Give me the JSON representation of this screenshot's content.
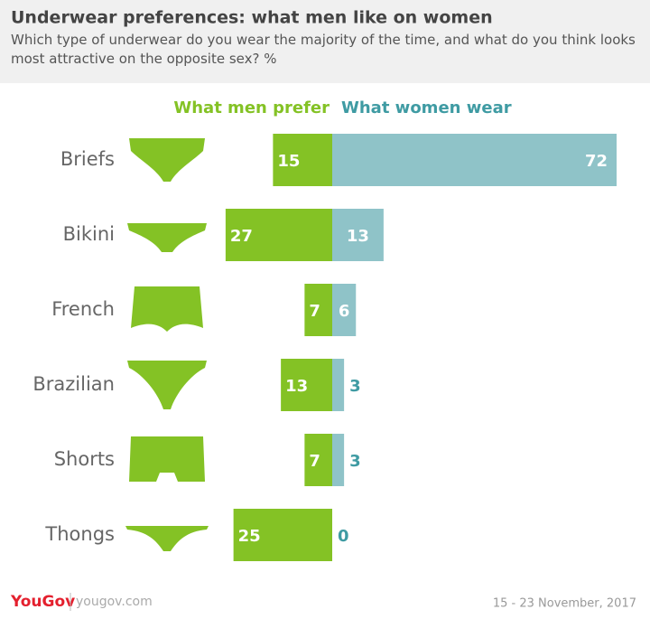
{
  "chart_data": {
    "type": "diverging-bar",
    "title": "Underwear preferences: what men like on women",
    "subtitle": "Which type of underwear do you wear the majority of the time, and what do you think looks most attractive on the opposite sex? %",
    "categories": [
      "Briefs",
      "Bikini",
      "French",
      "Brazilian",
      "Shorts",
      "Thongs"
    ],
    "series": [
      {
        "name": "What men prefer",
        "color": "#84c225",
        "values": [
          15,
          27,
          7,
          13,
          7,
          25
        ]
      },
      {
        "name": "What women wear",
        "color": "#8fc3c8",
        "values": [
          72,
          13,
          6,
          3,
          3,
          0
        ]
      }
    ],
    "source": "YouGov",
    "source_url": "yougov.com",
    "date": "15 - 23 November, 2017"
  }
}
